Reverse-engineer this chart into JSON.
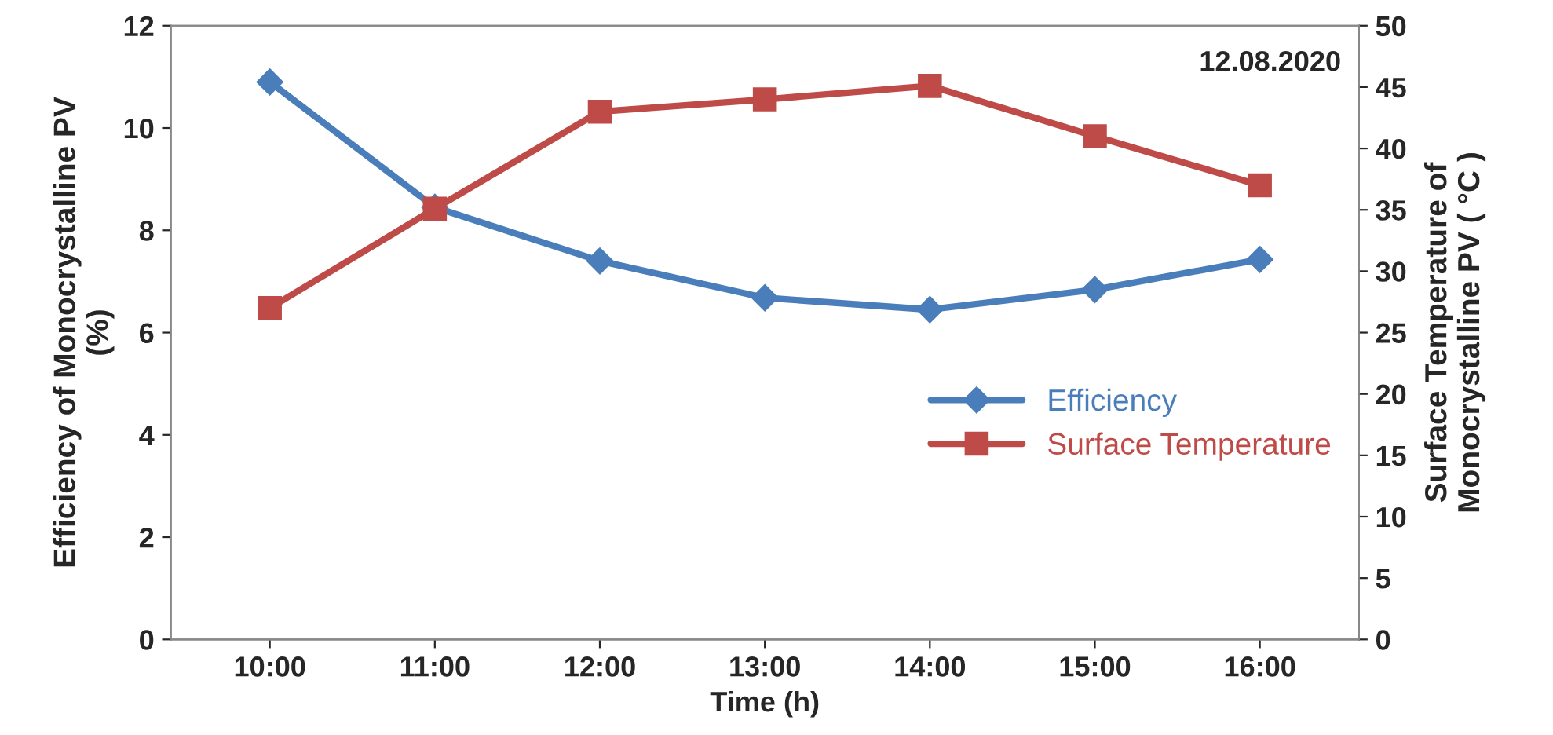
{
  "chart_data": {
    "type": "line",
    "xlabel": "Time (h)",
    "ylabel": "Efficiency of Monocrystalline PV\n(%)",
    "y2label": "Surface Temperature of\nMonocrystalline PV ( °C )",
    "categories": [
      "10:00",
      "11:00",
      "12:00",
      "13:00",
      "14:00",
      "15:00",
      "16:00"
    ],
    "series": [
      {
        "name": "Efficiency",
        "color": "#4a7ebb",
        "marker": "diamond",
        "values": [
          10.9,
          8.45,
          7.4,
          6.68,
          6.45,
          6.84,
          7.43
        ]
      },
      {
        "name": "Surface Temperature",
        "color": "#be4b48",
        "marker": "square",
        "axis": "y2",
        "values": [
          27.0,
          35.1,
          43.0,
          44.0,
          45.1,
          41.0,
          37.0
        ]
      }
    ],
    "ylim": [
      0,
      12
    ],
    "yticks": [
      0,
      2,
      4,
      6,
      8,
      10,
      12
    ],
    "y2lim": [
      0,
      50
    ],
    "y2ticks": [
      0,
      5,
      10,
      15,
      20,
      25,
      30,
      35,
      40,
      45,
      50
    ],
    "annotations": [
      "12.08.2020"
    ],
    "legend": "center right",
    "grid": false,
    "line_style": "solid"
  }
}
